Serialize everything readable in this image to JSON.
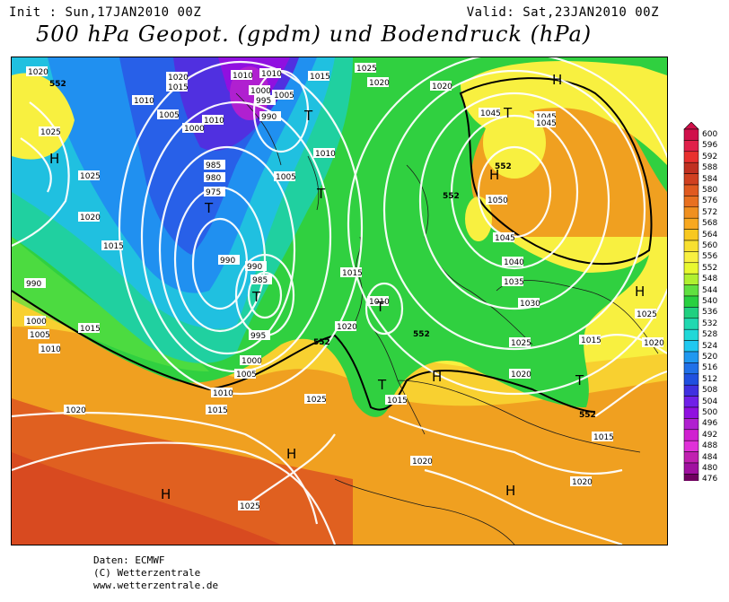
{
  "header": {
    "init": "Init : Sun,17JAN2010 00Z",
    "valid": "Valid: Sat,23JAN2010 00Z",
    "title": "500 hPa Geopot. (gpdm) und Bodendruck (hPa)"
  },
  "legend": {
    "levels": [
      "600",
      "596",
      "592",
      "588",
      "584",
      "580",
      "576",
      "572",
      "568",
      "564",
      "560",
      "556",
      "552",
      "548",
      "544",
      "540",
      "536",
      "532",
      "528",
      "524",
      "520",
      "516",
      "512",
      "508",
      "504",
      "500",
      "496",
      "492",
      "488",
      "484",
      "480",
      "476"
    ],
    "colors": [
      "#d0104a",
      "#e0204a",
      "#e8302e",
      "#c03020",
      "#d04020",
      "#e05a20",
      "#e87020",
      "#f09020",
      "#f8a820",
      "#f8c820",
      "#f8e030",
      "#f8f040",
      "#e8f830",
      "#b0f030",
      "#60e040",
      "#28d040",
      "#20d080",
      "#20d8b0",
      "#20d8d8",
      "#20c8f0",
      "#2098f0",
      "#2070e8",
      "#2050e0",
      "#4030e0",
      "#7020e8",
      "#9010e0",
      "#b020d0",
      "#d020d0",
      "#e030d8",
      "#c020b0",
      "#a010a0",
      "#700060"
    ]
  },
  "map": {
    "pressure_labels": [
      "1020",
      "1015",
      "1010",
      "1005",
      "1000",
      "995",
      "990",
      "985",
      "980",
      "975",
      "1025",
      "1030",
      "1035",
      "1040",
      "1045",
      "1050"
    ],
    "geopot_label": "552",
    "high_symbol": "H",
    "low_symbol": "T"
  },
  "footer": {
    "line1": "Daten: ECMWF",
    "line2": "(C) Wetterzentrale",
    "line3": "www.wetterzentrale.de"
  }
}
